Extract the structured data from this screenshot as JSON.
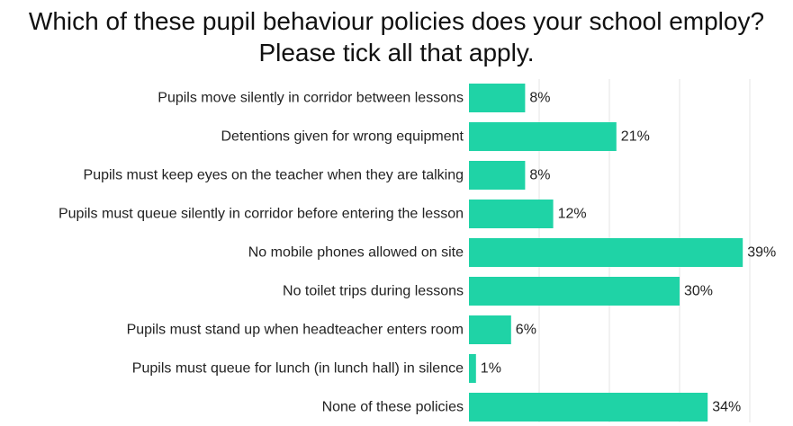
{
  "title_line1": "Which of these pupil behaviour policies does your school employ?",
  "title_line2": "Please tick all that apply.",
  "colors": {
    "bar": "#1fd3a6",
    "grid": "#e6e6e6"
  },
  "chart_data": {
    "type": "bar",
    "orientation": "horizontal",
    "title": "Which of these pupil behaviour policies does your school employ? Please tick all that apply.",
    "categories": [
      "Pupils move silently in corridor between lessons",
      "Detentions given for wrong equipment",
      "Pupils must keep eyes on the teacher when they are talking",
      "Pupils must queue silently in corridor before entering the lesson",
      "No mobile phones allowed on site",
      "No toilet trips during lessons",
      "Pupils must stand up when headteacher enters room",
      "Pupils must queue for lunch (in lunch hall) in silence",
      "None of these policies"
    ],
    "values": [
      8,
      21,
      8,
      12,
      39,
      30,
      6,
      1,
      34
    ],
    "value_labels": [
      "8%",
      "21%",
      "8%",
      "12%",
      "39%",
      "30%",
      "6%",
      "1%",
      "34%"
    ],
    "xlim": [
      0,
      40
    ],
    "grid": true,
    "legend": "none"
  }
}
